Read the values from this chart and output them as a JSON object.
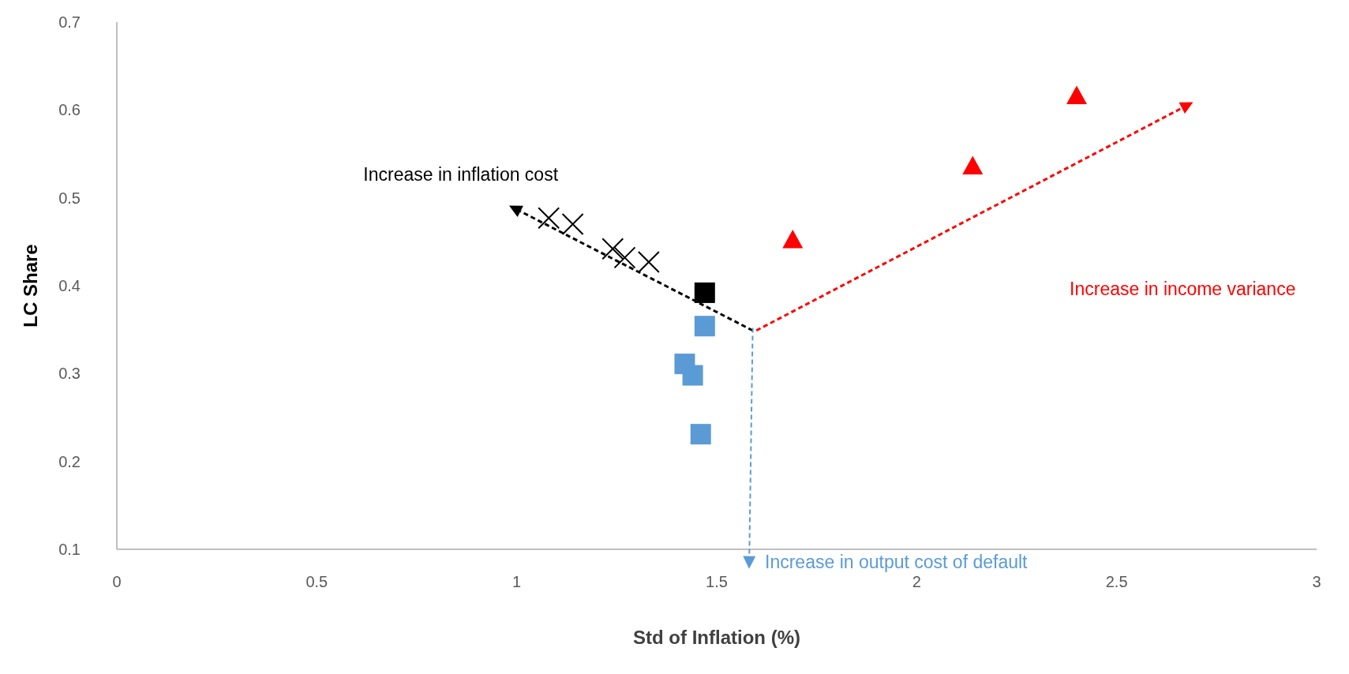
{
  "chart_data": {
    "type": "scatter",
    "xlabel": "Std of Inflation (%)",
    "ylabel": "LC Share",
    "xlim": [
      0,
      3
    ],
    "xticks": [
      0,
      0.5,
      1,
      1.5,
      2,
      2.5,
      3
    ],
    "ylim": [
      0.1,
      0.7
    ],
    "yticks": [
      0.1,
      0.2,
      0.3,
      0.4,
      0.5,
      0.6,
      0.7
    ],
    "grid": false,
    "legend": false,
    "series": [
      {
        "color": "#000000",
        "marker": "cross",
        "x": [
          1.08,
          1.14,
          1.24,
          1.27,
          1.33
        ],
        "values": [
          0.477,
          0.47,
          0.442,
          0.432,
          0.427
        ]
      },
      {
        "color": "#000000",
        "marker": "square",
        "x": [
          1.47
        ],
        "values": [
          0.392
        ]
      },
      {
        "color": "#5b9bd5",
        "marker": "square",
        "x": [
          1.47,
          1.42,
          1.44,
          1.46
        ],
        "values": [
          0.354,
          0.311,
          0.298,
          0.231
        ]
      },
      {
        "color": "#ff0000",
        "marker": "triangle",
        "x": [
          1.69,
          2.14,
          2.4
        ],
        "values": [
          0.452,
          0.536,
          0.616
        ]
      }
    ],
    "annotations": [
      "Increase in inflation cost",
      "Increase in income variance",
      "Increase in output cost of default"
    ]
  }
}
